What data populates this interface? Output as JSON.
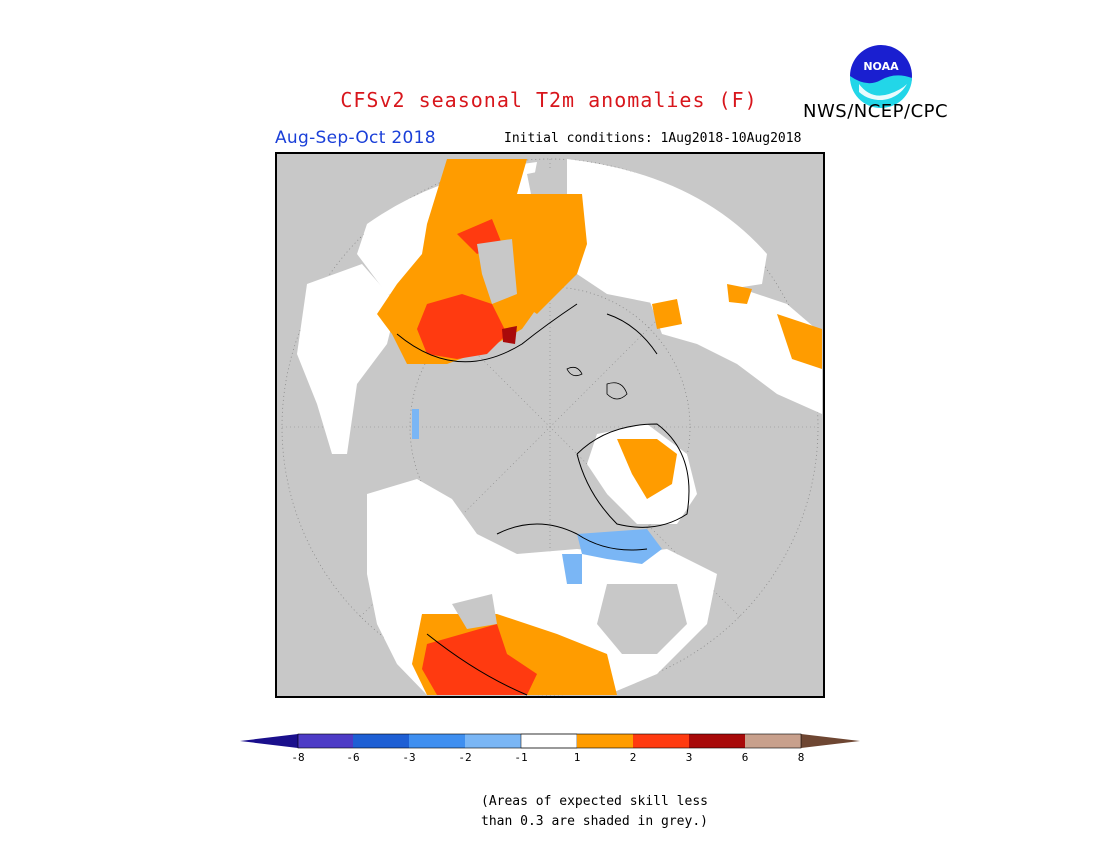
{
  "header": {
    "title": "CFSv2 seasonal T2m anomalies (F)",
    "organization": "NWS/NCEP/CPC",
    "logo_text": "NOAA",
    "period": "Aug-Sep-Oct 2018",
    "initial_conditions": "Initial conditions: 1Aug2018-10Aug2018"
  },
  "map": {
    "projection": "polar-stereographic",
    "hemisphere": "north",
    "background_color": "#c8c8c8",
    "ocean_color": "#c8c8c8"
  },
  "colorbar": {
    "tick_labels": [
      "-8",
      "-6",
      "-3",
      "-2",
      "-1",
      "1",
      "2",
      "3",
      "6",
      "8"
    ],
    "colors": [
      "#1a0f8c",
      "#4d3bc6",
      "#1e5fd4",
      "#3f8ff0",
      "#7ab6f5",
      "#ffffff",
      "#ff9c00",
      "#ff3a10",
      "#a80a0a",
      "#c8a08c",
      "#6e4632"
    ]
  },
  "footnote": {
    "line1": "(Areas of expected skill less",
    "line2": "than 0.3 are shaded in grey.)"
  }
}
